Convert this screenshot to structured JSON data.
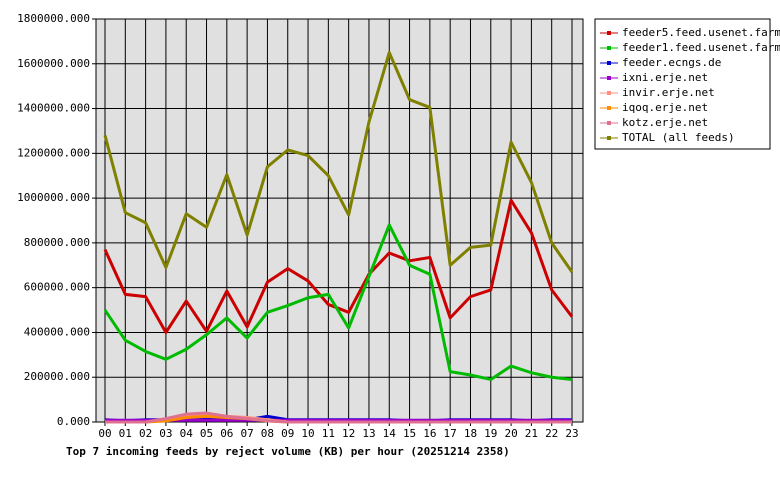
{
  "chart_data": {
    "type": "line",
    "title": "Top 7 incoming feeds by reject volume (KB) per hour (20251214 2358)",
    "categories": [
      "00",
      "01",
      "02",
      "03",
      "04",
      "05",
      "06",
      "07",
      "08",
      "09",
      "10",
      "11",
      "12",
      "13",
      "14",
      "15",
      "16",
      "17",
      "18",
      "19",
      "20",
      "21",
      "22",
      "23"
    ],
    "ylim": [
      0,
      1800000
    ],
    "yticks": [
      {
        "value": 0,
        "label": "0.000"
      },
      {
        "value": 200000,
        "label": "200000.000"
      },
      {
        "value": 400000,
        "label": "400000.000"
      },
      {
        "value": 600000,
        "label": "600000.000"
      },
      {
        "value": 800000,
        "label": "800000.000"
      },
      {
        "value": 1000000,
        "label": "1000000.000"
      },
      {
        "value": 1200000,
        "label": "1200000.000"
      },
      {
        "value": 1400000,
        "label": "1400000.000"
      },
      {
        "value": 1600000,
        "label": "1600000.000"
      },
      {
        "value": 1800000,
        "label": "1800000.000"
      }
    ],
    "grid": true,
    "series": [
      {
        "name": "feeder5.feed.usenet.farm",
        "color": "#cc0000",
        "values": [
          770000,
          570000,
          560000,
          400000,
          540000,
          405000,
          585000,
          425000,
          625000,
          685000,
          630000,
          525000,
          490000,
          660000,
          755000,
          720000,
          735000,
          465000,
          560000,
          590000,
          990000,
          845000,
          590000,
          470000
        ]
      },
      {
        "name": "feeder1.feed.usenet.farm",
        "color": "#00bb00",
        "values": [
          500000,
          365000,
          315000,
          280000,
          325000,
          390000,
          465000,
          375000,
          490000,
          520000,
          555000,
          570000,
          420000,
          650000,
          880000,
          700000,
          660000,
          225000,
          210000,
          190000,
          250000,
          220000,
          200000,
          190000
        ]
      },
      {
        "name": "feeder.ecngs.de",
        "color": "#0000cc",
        "values": [
          10000,
          5000,
          10000,
          10000,
          10000,
          15000,
          15000,
          10000,
          25000,
          10000,
          10000,
          10000,
          10000,
          10000,
          10000,
          5000,
          5000,
          10000,
          10000,
          10000,
          10000,
          5000,
          10000,
          10000
        ]
      },
      {
        "name": "ixni.erje.net",
        "color": "#9900cc",
        "values": [
          8000,
          8000,
          8000,
          8000,
          8000,
          8000,
          8000,
          8000,
          8000,
          8000,
          8000,
          8000,
          8000,
          8000,
          8000,
          8000,
          8000,
          8000,
          8000,
          8000,
          8000,
          8000,
          8000,
          8000
        ]
      },
      {
        "name": "invir.erje.net",
        "color": "#ff9080",
        "values": [
          0,
          0,
          0,
          10000,
          30000,
          35000,
          25000,
          20000,
          10000,
          0,
          0,
          0,
          0,
          0,
          0,
          0,
          0,
          0,
          0,
          0,
          0,
          0,
          0,
          0
        ]
      },
      {
        "name": "iqoq.erje.net",
        "color": "#ff8c00",
        "values": [
          0,
          0,
          0,
          5000,
          20000,
          25000,
          20000,
          15000,
          5000,
          0,
          0,
          0,
          0,
          0,
          0,
          0,
          0,
          0,
          0,
          0,
          0,
          0,
          0,
          0
        ]
      },
      {
        "name": "kotz.erje.net",
        "color": "#e07090",
        "values": [
          0,
          0,
          0,
          15000,
          35000,
          40000,
          25000,
          15000,
          5000,
          0,
          0,
          0,
          0,
          0,
          0,
          0,
          0,
          0,
          0,
          0,
          0,
          0,
          0,
          0
        ]
      },
      {
        "name": "TOTAL (all feeds)",
        "color": "#808000",
        "values": [
          1280000,
          935000,
          890000,
          690000,
          930000,
          870000,
          1105000,
          835000,
          1140000,
          1215000,
          1190000,
          1100000,
          925000,
          1340000,
          1650000,
          1440000,
          1405000,
          700000,
          780000,
          790000,
          1250000,
          1070000,
          800000,
          670000
        ]
      }
    ]
  }
}
